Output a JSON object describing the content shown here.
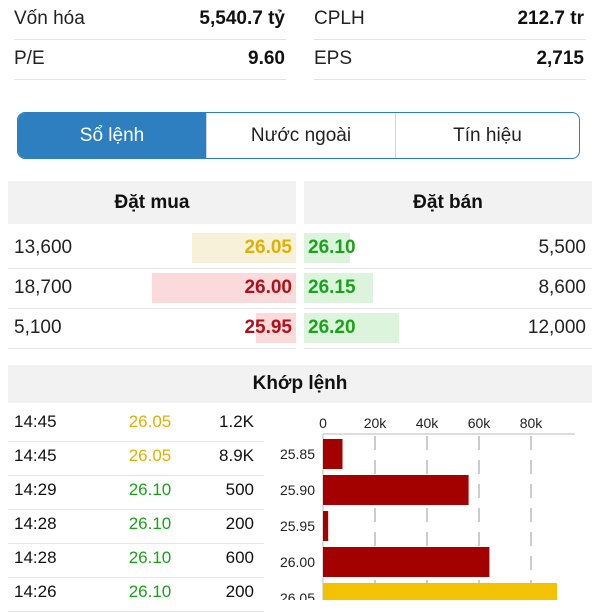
{
  "stats": {
    "von_hoa_label": "Vốn hóa",
    "von_hoa_value": "5,540.7 tỷ",
    "cplh_label": "CPLH",
    "cplh_value": "212.7 tr",
    "pe_label": "P/E",
    "pe_value": "9.60",
    "eps_label": "EPS",
    "eps_value": "2,715"
  },
  "tabs": [
    {
      "label": "Sổ lệnh",
      "active": true
    },
    {
      "label": "Nước ngoài",
      "active": false
    },
    {
      "label": "Tín hiệu",
      "active": false
    }
  ],
  "orderbook": {
    "buy_title": "Đặt mua",
    "sell_title": "Đặt bán",
    "rows": [
      {
        "buy_qty": "13,600",
        "buy_price": "26.05",
        "buy_color": "#e0b000",
        "buy_bg": "#f6f1d8",
        "buy_level": 0.36,
        "sell_price": "26.10",
        "sell_color": "#1aa31a",
        "sell_bg": "#dcf3dc",
        "sell_level": 0.16,
        "sell_qty": "5,500"
      },
      {
        "buy_qty": "18,700",
        "buy_price": "26.00",
        "buy_color": "#b0101a",
        "buy_bg": "#fadada",
        "buy_level": 0.5,
        "sell_price": "26.15",
        "sell_color": "#1aa31a",
        "sell_bg": "#dcf3dc",
        "sell_level": 0.24,
        "sell_qty": "8,600"
      },
      {
        "buy_qty": "5,100",
        "buy_price": "25.95",
        "buy_color": "#b0101a",
        "buy_bg": "#fadada",
        "buy_level": 0.14,
        "sell_price": "26.20",
        "sell_color": "#1aa31a",
        "sell_bg": "#dcf3dc",
        "sell_level": 0.33,
        "sell_qty": "12,000"
      }
    ]
  },
  "matched": {
    "title": "Khớp lệnh",
    "trades": [
      {
        "time": "14:45",
        "price": "26.05",
        "color": "#e0b000",
        "volume": "1.2K"
      },
      {
        "time": "14:45",
        "price": "26.05",
        "color": "#e0b000",
        "volume": "8.9K"
      },
      {
        "time": "14:29",
        "price": "26.10",
        "color": "#1aa31a",
        "volume": "500"
      },
      {
        "time": "14:28",
        "price": "26.10",
        "color": "#1aa31a",
        "volume": "200"
      },
      {
        "time": "14:28",
        "price": "26.10",
        "color": "#1aa31a",
        "volume": "600"
      },
      {
        "time": "14:26",
        "price": "26.10",
        "color": "#1aa31a",
        "volume": "200"
      }
    ]
  },
  "chart_data": {
    "type": "bar",
    "orientation": "horizontal",
    "x_ticks": [
      "0",
      "20k",
      "40k",
      "60k",
      "80k"
    ],
    "xlim": [
      0,
      100000
    ],
    "categories": [
      "25.85",
      "25.90",
      "25.95",
      "26.00",
      "26.05"
    ],
    "values": [
      7500,
      56000,
      2000,
      64000,
      90000
    ],
    "colors": [
      "#a30000",
      "#a30000",
      "#a30000",
      "#a30000",
      "#f2c200"
    ],
    "grid": "dashed vertical"
  }
}
